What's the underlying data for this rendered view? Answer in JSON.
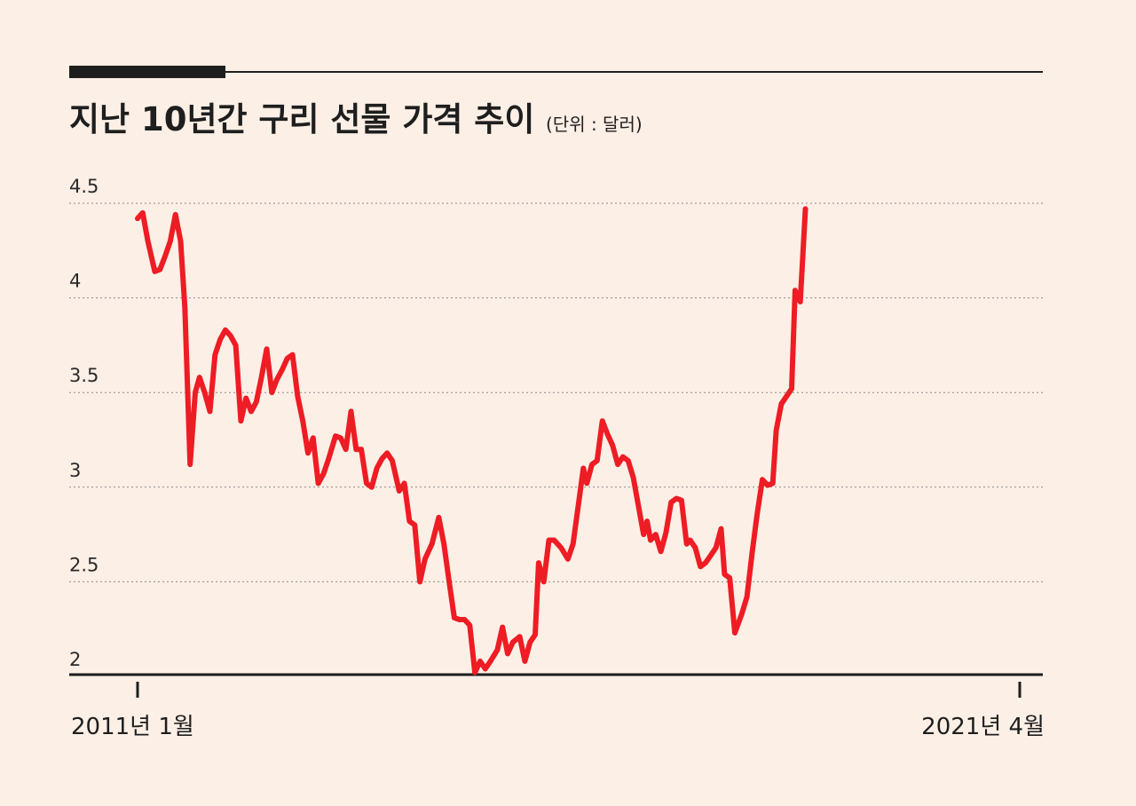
{
  "header": {
    "title": "지난 10년간 구리 선물 가격 추이",
    "unit": "(단위 : 달러)"
  },
  "colors": {
    "background": "#fcefe6",
    "line": "#ee1c24",
    "axis": "#1e1e1e",
    "grid": "#8a8a8a"
  },
  "chart_data": {
    "type": "line",
    "title": "지난 10년간 구리 선물 가격 추이",
    "unit": "(단위 : 달러)",
    "ylim": [
      1.85,
      4.5
    ],
    "y_ticks": [
      {
        "value": 4.5,
        "label": "4.5"
      },
      {
        "value": 4,
        "label": "4"
      },
      {
        "value": 3.5,
        "label": "3.5"
      },
      {
        "value": 3,
        "label": "3"
      },
      {
        "value": 2.5,
        "label": "2.5"
      },
      {
        "value": 2,
        "label": "2"
      }
    ],
    "x_ticks": [
      {
        "value": 2011.0,
        "label": "2011년 1월"
      },
      {
        "value": 2021.25,
        "label": "2021년 4월"
      }
    ],
    "xlim": [
      2010.8,
      2021.5
    ],
    "grid": "horizontal dotted",
    "series": [
      {
        "values": [
          [
            2011.0,
            4.42
          ],
          [
            2011.06,
            4.45
          ],
          [
            2011.12,
            4.3
          ],
          [
            2011.2,
            4.14
          ],
          [
            2011.26,
            4.15
          ],
          [
            2011.32,
            4.22
          ],
          [
            2011.38,
            4.3
          ],
          [
            2011.44,
            4.44
          ],
          [
            2011.5,
            4.3
          ],
          [
            2011.55,
            3.95
          ],
          [
            2011.61,
            3.12
          ],
          [
            2011.67,
            3.5
          ],
          [
            2011.72,
            3.58
          ],
          [
            2011.78,
            3.5
          ],
          [
            2011.84,
            3.4
          ],
          [
            2011.9,
            3.7
          ],
          [
            2011.96,
            3.78
          ],
          [
            2012.02,
            3.83
          ],
          [
            2012.08,
            3.8
          ],
          [
            2012.14,
            3.75
          ],
          [
            2012.2,
            3.35
          ],
          [
            2012.26,
            3.47
          ],
          [
            2012.32,
            3.4
          ],
          [
            2012.38,
            3.45
          ],
          [
            2012.44,
            3.58
          ],
          [
            2012.5,
            3.73
          ],
          [
            2012.56,
            3.5
          ],
          [
            2012.62,
            3.57
          ],
          [
            2012.68,
            3.62
          ],
          [
            2012.74,
            3.68
          ],
          [
            2012.8,
            3.7
          ],
          [
            2012.86,
            3.48
          ],
          [
            2012.92,
            3.35
          ],
          [
            2012.98,
            3.18
          ],
          [
            2013.04,
            3.26
          ],
          [
            2013.1,
            3.02
          ],
          [
            2013.16,
            3.07
          ],
          [
            2013.22,
            3.15
          ],
          [
            2013.3,
            3.27
          ],
          [
            2013.36,
            3.26
          ],
          [
            2013.42,
            3.2
          ],
          [
            2013.48,
            3.4
          ],
          [
            2013.54,
            3.2
          ],
          [
            2013.6,
            3.2
          ],
          [
            2013.66,
            3.02
          ],
          [
            2013.72,
            3.0
          ],
          [
            2013.78,
            3.1
          ],
          [
            2013.84,
            3.15
          ],
          [
            2013.9,
            3.18
          ],
          [
            2013.96,
            3.14
          ],
          [
            2014.04,
            2.98
          ],
          [
            2014.1,
            3.02
          ],
          [
            2014.16,
            2.82
          ],
          [
            2014.22,
            2.8
          ],
          [
            2014.28,
            2.5
          ],
          [
            2014.34,
            2.62
          ],
          [
            2014.42,
            2.7
          ],
          [
            2014.5,
            2.84
          ],
          [
            2014.56,
            2.7
          ],
          [
            2014.62,
            2.5
          ],
          [
            2014.68,
            2.31
          ],
          [
            2014.74,
            2.3
          ],
          [
            2014.8,
            2.3
          ],
          [
            2014.86,
            2.27
          ],
          [
            2014.92,
            2.02
          ],
          [
            2014.98,
            2.08
          ],
          [
            2015.04,
            2.04
          ],
          [
            2015.1,
            2.08
          ],
          [
            2015.18,
            2.14
          ],
          [
            2015.24,
            2.26
          ],
          [
            2015.3,
            2.12
          ],
          [
            2015.36,
            2.18
          ],
          [
            2015.44,
            2.21
          ],
          [
            2015.5,
            2.08
          ],
          [
            2015.56,
            2.18
          ],
          [
            2015.62,
            2.22
          ],
          [
            2015.66,
            2.6
          ],
          [
            2015.72,
            2.5
          ],
          [
            2015.78,
            2.72
          ],
          [
            2015.84,
            2.72
          ],
          [
            2015.92,
            2.68
          ],
          [
            2016.0,
            2.62
          ],
          [
            2016.06,
            2.7
          ],
          [
            2016.12,
            2.9
          ],
          [
            2016.18,
            3.1
          ],
          [
            2016.22,
            3.02
          ],
          [
            2016.28,
            3.12
          ],
          [
            2016.34,
            3.14
          ],
          [
            2016.4,
            3.35
          ],
          [
            2016.46,
            3.28
          ],
          [
            2016.52,
            3.22
          ],
          [
            2016.58,
            3.12
          ],
          [
            2016.64,
            3.16
          ],
          [
            2016.7,
            3.14
          ],
          [
            2016.76,
            3.05
          ],
          [
            2016.82,
            2.9
          ],
          [
            2016.88,
            2.75
          ],
          [
            2016.92,
            2.82
          ],
          [
            2016.96,
            2.72
          ],
          [
            2017.02,
            2.75
          ],
          [
            2017.08,
            2.66
          ],
          [
            2017.14,
            2.76
          ],
          [
            2017.2,
            2.92
          ],
          [
            2017.26,
            2.94
          ],
          [
            2017.32,
            2.93
          ],
          [
            2017.38,
            2.7
          ],
          [
            2017.42,
            2.72
          ],
          [
            2017.48,
            2.68
          ],
          [
            2017.54,
            2.58
          ],
          [
            2017.6,
            2.6
          ],
          [
            2017.66,
            2.64
          ],
          [
            2017.72,
            2.68
          ],
          [
            2017.78,
            2.78
          ],
          [
            2017.82,
            2.54
          ],
          [
            2017.88,
            2.52
          ],
          [
            2017.94,
            2.23
          ],
          [
            2018.02,
            2.33
          ],
          [
            2018.08,
            2.42
          ],
          [
            2018.14,
            2.65
          ],
          [
            2018.2,
            2.86
          ],
          [
            2018.26,
            3.04
          ],
          [
            2018.32,
            3.01
          ],
          [
            2018.38,
            3.02
          ],
          [
            2018.42,
            3.3
          ],
          [
            2018.48,
            3.44
          ],
          [
            2018.54,
            3.48
          ],
          [
            2018.6,
            3.52
          ],
          [
            2018.64,
            4.04
          ],
          [
            2018.7,
            3.98
          ],
          [
            2018.76,
            4.47
          ]
        ]
      }
    ]
  }
}
